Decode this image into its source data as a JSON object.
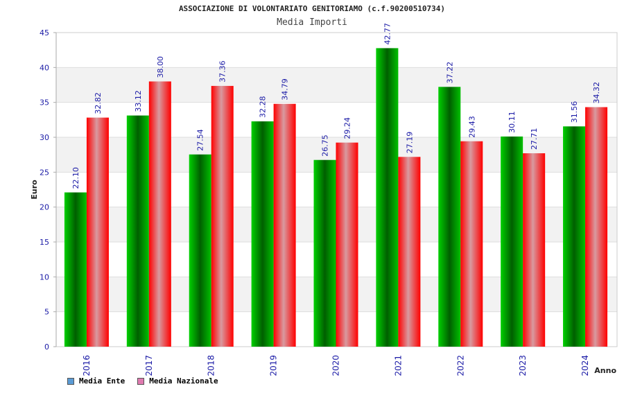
{
  "chart_data": {
    "type": "bar",
    "title": "ASSOCIAZIONE DI VOLONTARIATO GENITORIAMO (c.f.90200510734)",
    "subtitle": "Media Importi",
    "xlabel": "Anno",
    "ylabel": "Euro",
    "ylim": [
      0,
      45
    ],
    "yticks": [
      0,
      5,
      10,
      15,
      20,
      25,
      30,
      35,
      40,
      45
    ],
    "grid": true,
    "legend_position": "bottom-left",
    "categories": [
      "2016",
      "2017",
      "2018",
      "2019",
      "2020",
      "2021",
      "2022",
      "2023",
      "2024"
    ],
    "series": [
      {
        "name": "Media Ente",
        "color": "#00a000",
        "legend_color": "#5b9bd5",
        "values": [
          22.1,
          33.12,
          27.54,
          32.28,
          26.75,
          42.77,
          37.22,
          30.11,
          31.56
        ],
        "labels": [
          "22.10",
          "33.12",
          "27.54",
          "32.28",
          "26.75",
          "42.77",
          "37.22",
          "30.11",
          "31.56"
        ]
      },
      {
        "name": "Media Nazionale",
        "color": "#ee0000",
        "legend_color": "#e07ab0",
        "values": [
          32.82,
          38.0,
          37.36,
          34.79,
          29.24,
          27.19,
          29.43,
          27.71,
          34.32
        ],
        "labels": [
          "32.82",
          "38.00",
          "37.36",
          "34.79",
          "29.24",
          "27.19",
          "29.43",
          "27.71",
          "34.32"
        ]
      }
    ]
  }
}
